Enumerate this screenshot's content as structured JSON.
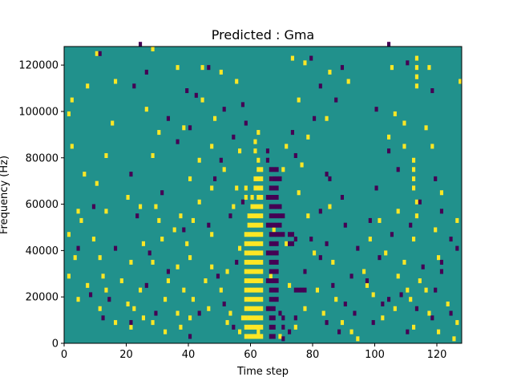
{
  "chart_data": {
    "type": "heatmap",
    "title": "Predicted : Gma",
    "xlabel": "Time step",
    "ylabel": "Frequency (Hz)",
    "xlim": [
      0,
      128
    ],
    "ylim": [
      0,
      128000
    ],
    "xticks": [
      0,
      20,
      40,
      60,
      80,
      100,
      120
    ],
    "yticks": [
      0,
      20000,
      40000,
      60000,
      80000,
      100000,
      120000
    ],
    "xtick_labels": [
      "0",
      "20",
      "40",
      "60",
      "80",
      "100",
      "120"
    ],
    "ytick_labels": [
      "0",
      "20000",
      "40000",
      "60000",
      "80000",
      "100000",
      "120000"
    ],
    "grid": false,
    "legend": "none",
    "colors": {
      "background": "#21918c",
      "low": "#440154",
      "high": "#fde725"
    },
    "levels": {
      "background": 0,
      "low": -1,
      "high": 1
    },
    "cell_size": {
      "time_steps": 1,
      "frequency_hz": 2000
    },
    "cells_high": [
      [
        58,
        2000
      ],
      [
        59,
        2000
      ],
      [
        60,
        2000
      ],
      [
        61,
        2000
      ],
      [
        62,
        2000
      ],
      [
        63,
        2000
      ],
      [
        58,
        6000
      ],
      [
        59,
        6000
      ],
      [
        60,
        6000
      ],
      [
        61,
        6000
      ],
      [
        62,
        6000
      ],
      [
        63,
        6000
      ],
      [
        58,
        10000
      ],
      [
        59,
        10000
      ],
      [
        60,
        10000
      ],
      [
        61,
        10000
      ],
      [
        62,
        10000
      ],
      [
        63,
        10000
      ],
      [
        58,
        14000
      ],
      [
        59,
        14000
      ],
      [
        60,
        14000
      ],
      [
        61,
        14000
      ],
      [
        62,
        14000
      ],
      [
        63,
        14000
      ],
      [
        58,
        18000
      ],
      [
        59,
        18000
      ],
      [
        60,
        18000
      ],
      [
        61,
        18000
      ],
      [
        62,
        18000
      ],
      [
        63,
        18000
      ],
      [
        58,
        22000
      ],
      [
        59,
        22000
      ],
      [
        60,
        22000
      ],
      [
        61,
        22000
      ],
      [
        62,
        22000
      ],
      [
        63,
        22000
      ],
      [
        58,
        26000
      ],
      [
        59,
        26000
      ],
      [
        60,
        26000
      ],
      [
        61,
        26000
      ],
      [
        62,
        26000
      ],
      [
        63,
        26000
      ],
      [
        58,
        30000
      ],
      [
        59,
        30000
      ],
      [
        60,
        30000
      ],
      [
        61,
        30000
      ],
      [
        62,
        30000
      ],
      [
        63,
        30000
      ],
      [
        58,
        34000
      ],
      [
        59,
        34000
      ],
      [
        60,
        34000
      ],
      [
        61,
        34000
      ],
      [
        62,
        34000
      ],
      [
        63,
        34000
      ],
      [
        58,
        38000
      ],
      [
        59,
        38000
      ],
      [
        60,
        38000
      ],
      [
        61,
        38000
      ],
      [
        62,
        38000
      ],
      [
        63,
        38000
      ],
      [
        58,
        42000
      ],
      [
        59,
        42000
      ],
      [
        60,
        42000
      ],
      [
        61,
        42000
      ],
      [
        62,
        42000
      ],
      [
        63,
        42000
      ],
      [
        58,
        46000
      ],
      [
        59,
        46000
      ],
      [
        60,
        46000
      ],
      [
        61,
        46000
      ],
      [
        62,
        46000
      ],
      [
        63,
        46000
      ],
      [
        59,
        50000
      ],
      [
        60,
        50000
      ],
      [
        61,
        50000
      ],
      [
        62,
        50000
      ],
      [
        63,
        50000
      ],
      [
        59,
        54000
      ],
      [
        60,
        54000
      ],
      [
        61,
        54000
      ],
      [
        62,
        54000
      ],
      [
        63,
        54000
      ],
      [
        60,
        58000
      ],
      [
        61,
        58000
      ],
      [
        62,
        58000
      ],
      [
        63,
        58000
      ],
      [
        58,
        62000
      ],
      [
        60,
        62000
      ],
      [
        62,
        62000
      ],
      [
        63,
        62000
      ],
      [
        58,
        66000
      ],
      [
        61,
        66000
      ],
      [
        62,
        66000
      ],
      [
        63,
        66000
      ],
      [
        61,
        70000
      ],
      [
        62,
        70000
      ],
      [
        63,
        70000
      ],
      [
        62,
        74000
      ],
      [
        63,
        74000
      ],
      [
        62,
        78000
      ],
      [
        61,
        86000
      ],
      [
        61,
        82000
      ],
      [
        62,
        90000
      ],
      [
        57,
        10000
      ],
      [
        56,
        4000
      ],
      [
        62,
        4000
      ],
      [
        10,
        124000
      ],
      [
        16,
        112000
      ],
      [
        7,
        110000
      ],
      [
        2,
        104000
      ],
      [
        1,
        98000
      ],
      [
        15,
        94000
      ],
      [
        30,
        90000
      ],
      [
        2,
        84000
      ],
      [
        13,
        80000
      ],
      [
        28,
        80000
      ],
      [
        6,
        72000
      ],
      [
        10,
        68000
      ],
      [
        20,
        62000
      ],
      [
        4,
        56000
      ],
      [
        13,
        56000
      ],
      [
        24,
        58000
      ],
      [
        29,
        58000
      ],
      [
        5,
        52000
      ],
      [
        30,
        52000
      ],
      [
        37,
        54000
      ],
      [
        35,
        48000
      ],
      [
        1,
        46000
      ],
      [
        9,
        44000
      ],
      [
        25,
        42000
      ],
      [
        31,
        44000
      ],
      [
        39,
        42000
      ],
      [
        3,
        36000
      ],
      [
        11,
        36000
      ],
      [
        21,
        34000
      ],
      [
        28,
        34000
      ],
      [
        36,
        32000
      ],
      [
        1,
        28000
      ],
      [
        12,
        28000
      ],
      [
        18,
        26000
      ],
      [
        33,
        26000
      ],
      [
        7,
        24000
      ],
      [
        13,
        22000
      ],
      [
        24,
        22000
      ],
      [
        38,
        22000
      ],
      [
        4,
        18000
      ],
      [
        20,
        16000
      ],
      [
        32,
        18000
      ],
      [
        11,
        14000
      ],
      [
        22,
        14000
      ],
      [
        36,
        12000
      ],
      [
        25,
        10000
      ],
      [
        16,
        8000
      ],
      [
        28,
        8000
      ],
      [
        37,
        6000
      ],
      [
        32,
        4000
      ],
      [
        21,
        6000
      ],
      [
        28,
        126000
      ],
      [
        36,
        118000
      ],
      [
        44,
        118000
      ],
      [
        50,
        116000
      ],
      [
        55,
        112000
      ],
      [
        44,
        104000
      ],
      [
        26,
        100000
      ],
      [
        48,
        96000
      ],
      [
        38,
        92000
      ],
      [
        47,
        84000
      ],
      [
        56,
        82000
      ],
      [
        43,
        78000
      ],
      [
        51,
        74000
      ],
      [
        40,
        70000
      ],
      [
        47,
        66000
      ],
      [
        55,
        66000
      ],
      [
        43,
        60000
      ],
      [
        54,
        58000
      ],
      [
        41,
        52000
      ],
      [
        47,
        46000
      ],
      [
        56,
        40000
      ],
      [
        40,
        36000
      ],
      [
        47,
        32000
      ],
      [
        52,
        30000
      ],
      [
        45,
        26000
      ],
      [
        50,
        22000
      ],
      [
        41,
        18000
      ],
      [
        46,
        14000
      ],
      [
        53,
        12000
      ],
      [
        40,
        10000
      ],
      [
        52,
        8000
      ],
      [
        73,
        122000
      ],
      [
        77,
        120000
      ],
      [
        85,
        116000
      ],
      [
        91,
        112000
      ],
      [
        75,
        104000
      ],
      [
        84,
        96000
      ],
      [
        78,
        88000
      ],
      [
        71,
        84000
      ],
      [
        76,
        76000
      ],
      [
        70,
        74000
      ],
      [
        66,
        70000
      ],
      [
        75,
        64000
      ],
      [
        85,
        58000
      ],
      [
        78,
        54000
      ],
      [
        67,
        48000
      ],
      [
        71,
        42000
      ],
      [
        80,
        38000
      ],
      [
        86,
        34000
      ],
      [
        66,
        28000
      ],
      [
        72,
        24000
      ],
      [
        81,
        22000
      ],
      [
        87,
        18000
      ],
      [
        77,
        14000
      ],
      [
        83,
        12000
      ],
      [
        89,
        8000
      ],
      [
        74,
        6000
      ],
      [
        69,
        2000
      ],
      [
        92,
        4000
      ],
      [
        105,
        118000
      ],
      [
        113,
        122000
      ],
      [
        113,
        118000
      ],
      [
        113,
        114000
      ],
      [
        113,
        110000
      ],
      [
        117,
        118000
      ],
      [
        127,
        112000
      ],
      [
        106,
        98000
      ],
      [
        109,
        94000
      ],
      [
        116,
        92000
      ],
      [
        104,
        88000
      ],
      [
        109,
        84000
      ],
      [
        118,
        84000
      ],
      [
        112,
        78000
      ],
      [
        112,
        74000
      ],
      [
        112,
        70000
      ],
      [
        112,
        66000
      ],
      [
        121,
        64000
      ],
      [
        113,
        60000
      ],
      [
        107,
        56000
      ],
      [
        113,
        54000
      ],
      [
        101,
        52000
      ],
      [
        126,
        52000
      ],
      [
        119,
        48000
      ],
      [
        98,
        44000
      ],
      [
        112,
        44000
      ],
      [
        103,
        38000
      ],
      [
        109,
        34000
      ],
      [
        120,
        36000
      ],
      [
        96,
        30000
      ],
      [
        107,
        28000
      ],
      [
        114,
        26000
      ],
      [
        97,
        24000
      ],
      [
        110,
        22000
      ],
      [
        116,
        22000
      ],
      [
        99,
        20000
      ],
      [
        111,
        18000
      ],
      [
        123,
        16000
      ],
      [
        106,
        14000
      ],
      [
        117,
        12000
      ],
      [
        102,
        10000
      ],
      [
        126,
        8000
      ],
      [
        112,
        6000
      ],
      [
        120,
        4000
      ],
      [
        94,
        1000
      ],
      [
        125,
        1000
      ]
    ],
    "cells_low": [
      [
        66,
        2000
      ],
      [
        67,
        2000
      ],
      [
        66,
        6000
      ],
      [
        67,
        6000
      ],
      [
        66,
        10000
      ],
      [
        67,
        10000
      ],
      [
        66,
        14000
      ],
      [
        67,
        14000
      ],
      [
        66,
        18000
      ],
      [
        67,
        18000
      ],
      [
        66,
        22000
      ],
      [
        67,
        22000
      ],
      [
        66,
        26000
      ],
      [
        67,
        26000
      ],
      [
        66,
        30000
      ],
      [
        67,
        30000
      ],
      [
        66,
        34000
      ],
      [
        67,
        34000
      ],
      [
        66,
        38000
      ],
      [
        67,
        38000
      ],
      [
        66,
        42000
      ],
      [
        67,
        42000
      ],
      [
        66,
        46000
      ],
      [
        67,
        46000
      ],
      [
        66,
        50000
      ],
      [
        67,
        50000
      ],
      [
        66,
        54000
      ],
      [
        67,
        54000
      ],
      [
        66,
        58000
      ],
      [
        67,
        58000
      ],
      [
        66,
        62000
      ],
      [
        67,
        62000
      ],
      [
        66,
        66000
      ],
      [
        67,
        66000
      ],
      [
        66,
        70000
      ],
      [
        67,
        70000
      ],
      [
        66,
        74000
      ],
      [
        67,
        74000
      ],
      [
        65,
        78000
      ],
      [
        65,
        82000
      ],
      [
        65,
        62000
      ],
      [
        65,
        50000
      ],
      [
        65,
        38000
      ],
      [
        65,
        14000
      ],
      [
        65,
        26000
      ],
      [
        68,
        54000
      ],
      [
        69,
        54000
      ],
      [
        70,
        54000
      ],
      [
        68,
        58000
      ],
      [
        69,
        58000
      ],
      [
        68,
        46000
      ],
      [
        69,
        46000
      ],
      [
        70,
        46000
      ],
      [
        68,
        62000
      ],
      [
        68,
        66000
      ],
      [
        68,
        70000
      ],
      [
        68,
        74000
      ],
      [
        69,
        70000
      ],
      [
        68,
        50000
      ],
      [
        69,
        50000
      ],
      [
        68,
        42000
      ],
      [
        68,
        38000
      ],
      [
        68,
        34000
      ],
      [
        68,
        30000
      ],
      [
        68,
        26000
      ],
      [
        68,
        22000
      ],
      [
        68,
        18000
      ],
      [
        69,
        12000
      ],
      [
        70,
        10000
      ],
      [
        72,
        42000
      ],
      [
        73,
        42000
      ],
      [
        72,
        46000
      ],
      [
        73,
        46000
      ],
      [
        74,
        44000
      ],
      [
        70,
        6000
      ],
      [
        72,
        4000
      ],
      [
        70,
        1000
      ],
      [
        74,
        10000
      ],
      [
        75,
        22000
      ],
      [
        76,
        22000
      ],
      [
        77,
        22000
      ],
      [
        74,
        22000
      ],
      [
        11,
        124000
      ],
      [
        24,
        128000
      ],
      [
        22,
        110000
      ],
      [
        26,
        116000
      ],
      [
        39,
        108000
      ],
      [
        33,
        96000
      ],
      [
        40,
        92000
      ],
      [
        36,
        86000
      ],
      [
        21,
        72000
      ],
      [
        31,
        64000
      ],
      [
        9,
        58000
      ],
      [
        23,
        54000
      ],
      [
        38,
        48000
      ],
      [
        4,
        40000
      ],
      [
        16,
        40000
      ],
      [
        27,
        38000
      ],
      [
        33,
        30000
      ],
      [
        8,
        20000
      ],
      [
        26,
        24000
      ],
      [
        14,
        18000
      ],
      [
        29,
        12000
      ],
      [
        12,
        10000
      ],
      [
        21,
        8000
      ],
      [
        40,
        2000
      ],
      [
        46,
        118000
      ],
      [
        42,
        106000
      ],
      [
        51,
        100000
      ],
      [
        57,
        102000
      ],
      [
        58,
        94000
      ],
      [
        54,
        88000
      ],
      [
        50,
        78000
      ],
      [
        48,
        70000
      ],
      [
        57,
        60000
      ],
      [
        53,
        54000
      ],
      [
        46,
        50000
      ],
      [
        55,
        34000
      ],
      [
        49,
        28000
      ],
      [
        43,
        12000
      ],
      [
        51,
        16000
      ],
      [
        54,
        6000
      ],
      [
        79,
        122000
      ],
      [
        89,
        118000
      ],
      [
        82,
        110000
      ],
      [
        87,
        104000
      ],
      [
        80,
        96000
      ],
      [
        73,
        90000
      ],
      [
        74,
        80000
      ],
      [
        84,
        72000
      ],
      [
        85,
        70000
      ],
      [
        89,
        62000
      ],
      [
        82,
        56000
      ],
      [
        90,
        50000
      ],
      [
        79,
        44000
      ],
      [
        84,
        42000
      ],
      [
        82,
        36000
      ],
      [
        77,
        30000
      ],
      [
        92,
        28000
      ],
      [
        86,
        24000
      ],
      [
        90,
        16000
      ],
      [
        93,
        12000
      ],
      [
        84,
        8000
      ],
      [
        88,
        4000
      ],
      [
        104,
        128000
      ],
      [
        110,
        120000
      ],
      [
        118,
        108000
      ],
      [
        100,
        100000
      ],
      [
        104,
        82000
      ],
      [
        107,
        74000
      ],
      [
        119,
        70000
      ],
      [
        100,
        66000
      ],
      [
        114,
        60000
      ],
      [
        121,
        56000
      ],
      [
        98,
        52000
      ],
      [
        111,
        50000
      ],
      [
        105,
        46000
      ],
      [
        124,
        44000
      ],
      [
        94,
        40000
      ],
      [
        101,
        36000
      ],
      [
        115,
        32000
      ],
      [
        121,
        34000
      ],
      [
        121,
        30000
      ],
      [
        126,
        40000
      ],
      [
        97,
        26000
      ],
      [
        104,
        18000
      ],
      [
        108,
        20000
      ],
      [
        119,
        22000
      ],
      [
        102,
        16000
      ],
      [
        113,
        14000
      ],
      [
        124,
        12000
      ],
      [
        99,
        8000
      ],
      [
        110,
        4000
      ],
      [
        118,
        10000
      ]
    ]
  }
}
